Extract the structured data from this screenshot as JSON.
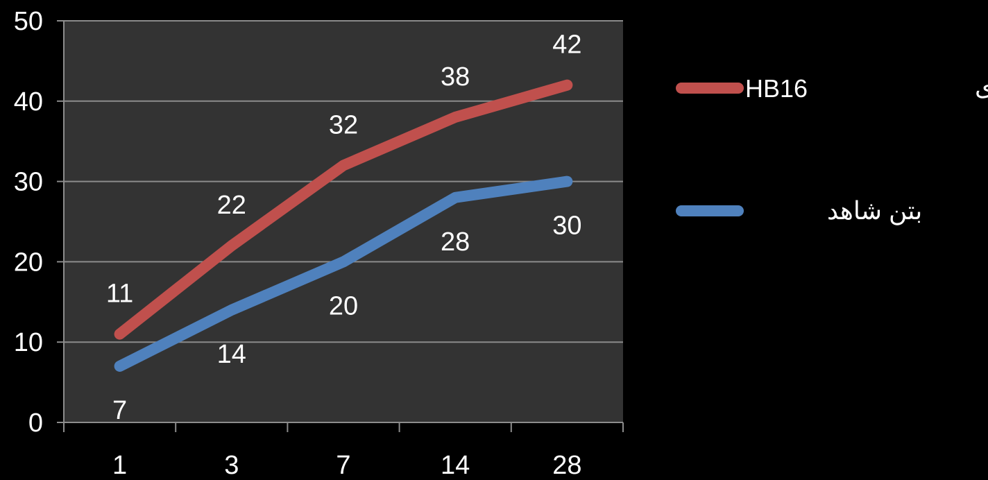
{
  "chart_data": {
    "type": "line",
    "categories": [
      "1",
      "3",
      "7",
      "14",
      "28"
    ],
    "ylim": [
      0,
      50
    ],
    "yticks": [
      0,
      10,
      20,
      30,
      40,
      50
    ],
    "grid": true,
    "legend_position": "right",
    "series": [
      {
        "name": "HB16",
        "values": [
          11,
          22,
          32,
          38,
          42
        ],
        "color": "#c0504d",
        "label_side": "above"
      },
      {
        "name": "بتن شاهد",
        "values": [
          7,
          14,
          20,
          28,
          30
        ],
        "color": "#4f81bd",
        "label_side": "below"
      }
    ],
    "legend_extra_text": "بتن حاوی",
    "colors": {
      "background": "#000000",
      "plot_area": "#333333",
      "gridline": "#8c8c8c",
      "text": "#ffffff"
    }
  }
}
